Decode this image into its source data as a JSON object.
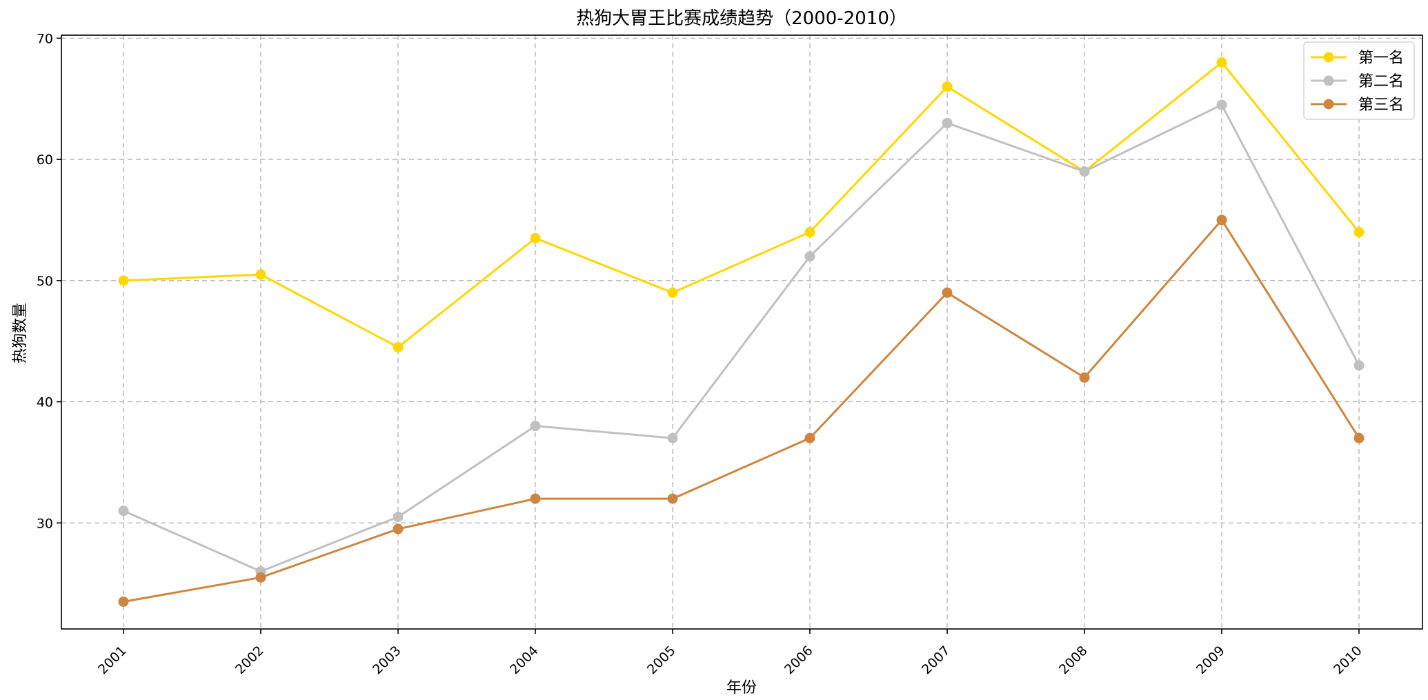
{
  "chart_data": {
    "type": "line",
    "title": "热狗大胃王比赛成绩趋势（2000-2010）",
    "xlabel": "年份",
    "ylabel": "热狗数量",
    "categories": [
      "2001",
      "2002",
      "2003",
      "2004",
      "2005",
      "2006",
      "2007",
      "2008",
      "2009",
      "2010"
    ],
    "ylim": [
      21.25,
      70.25
    ],
    "yticks": [
      30,
      40,
      50,
      60,
      70
    ],
    "grid": true,
    "legend_position": "top-right",
    "series": [
      {
        "name": "第一名",
        "color": "#FFD700",
        "values": [
          50,
          50.5,
          44.5,
          53.5,
          49,
          54,
          66,
          59,
          68,
          54
        ]
      },
      {
        "name": "第二名",
        "color": "#C0C0C0",
        "values": [
          31,
          26,
          30.5,
          38,
          37,
          52,
          63,
          59,
          64.5,
          43
        ]
      },
      {
        "name": "第三名",
        "color": "#CD853F",
        "values": [
          23.5,
          25.5,
          29.5,
          32,
          32,
          37,
          49,
          42,
          55,
          37
        ]
      }
    ]
  }
}
